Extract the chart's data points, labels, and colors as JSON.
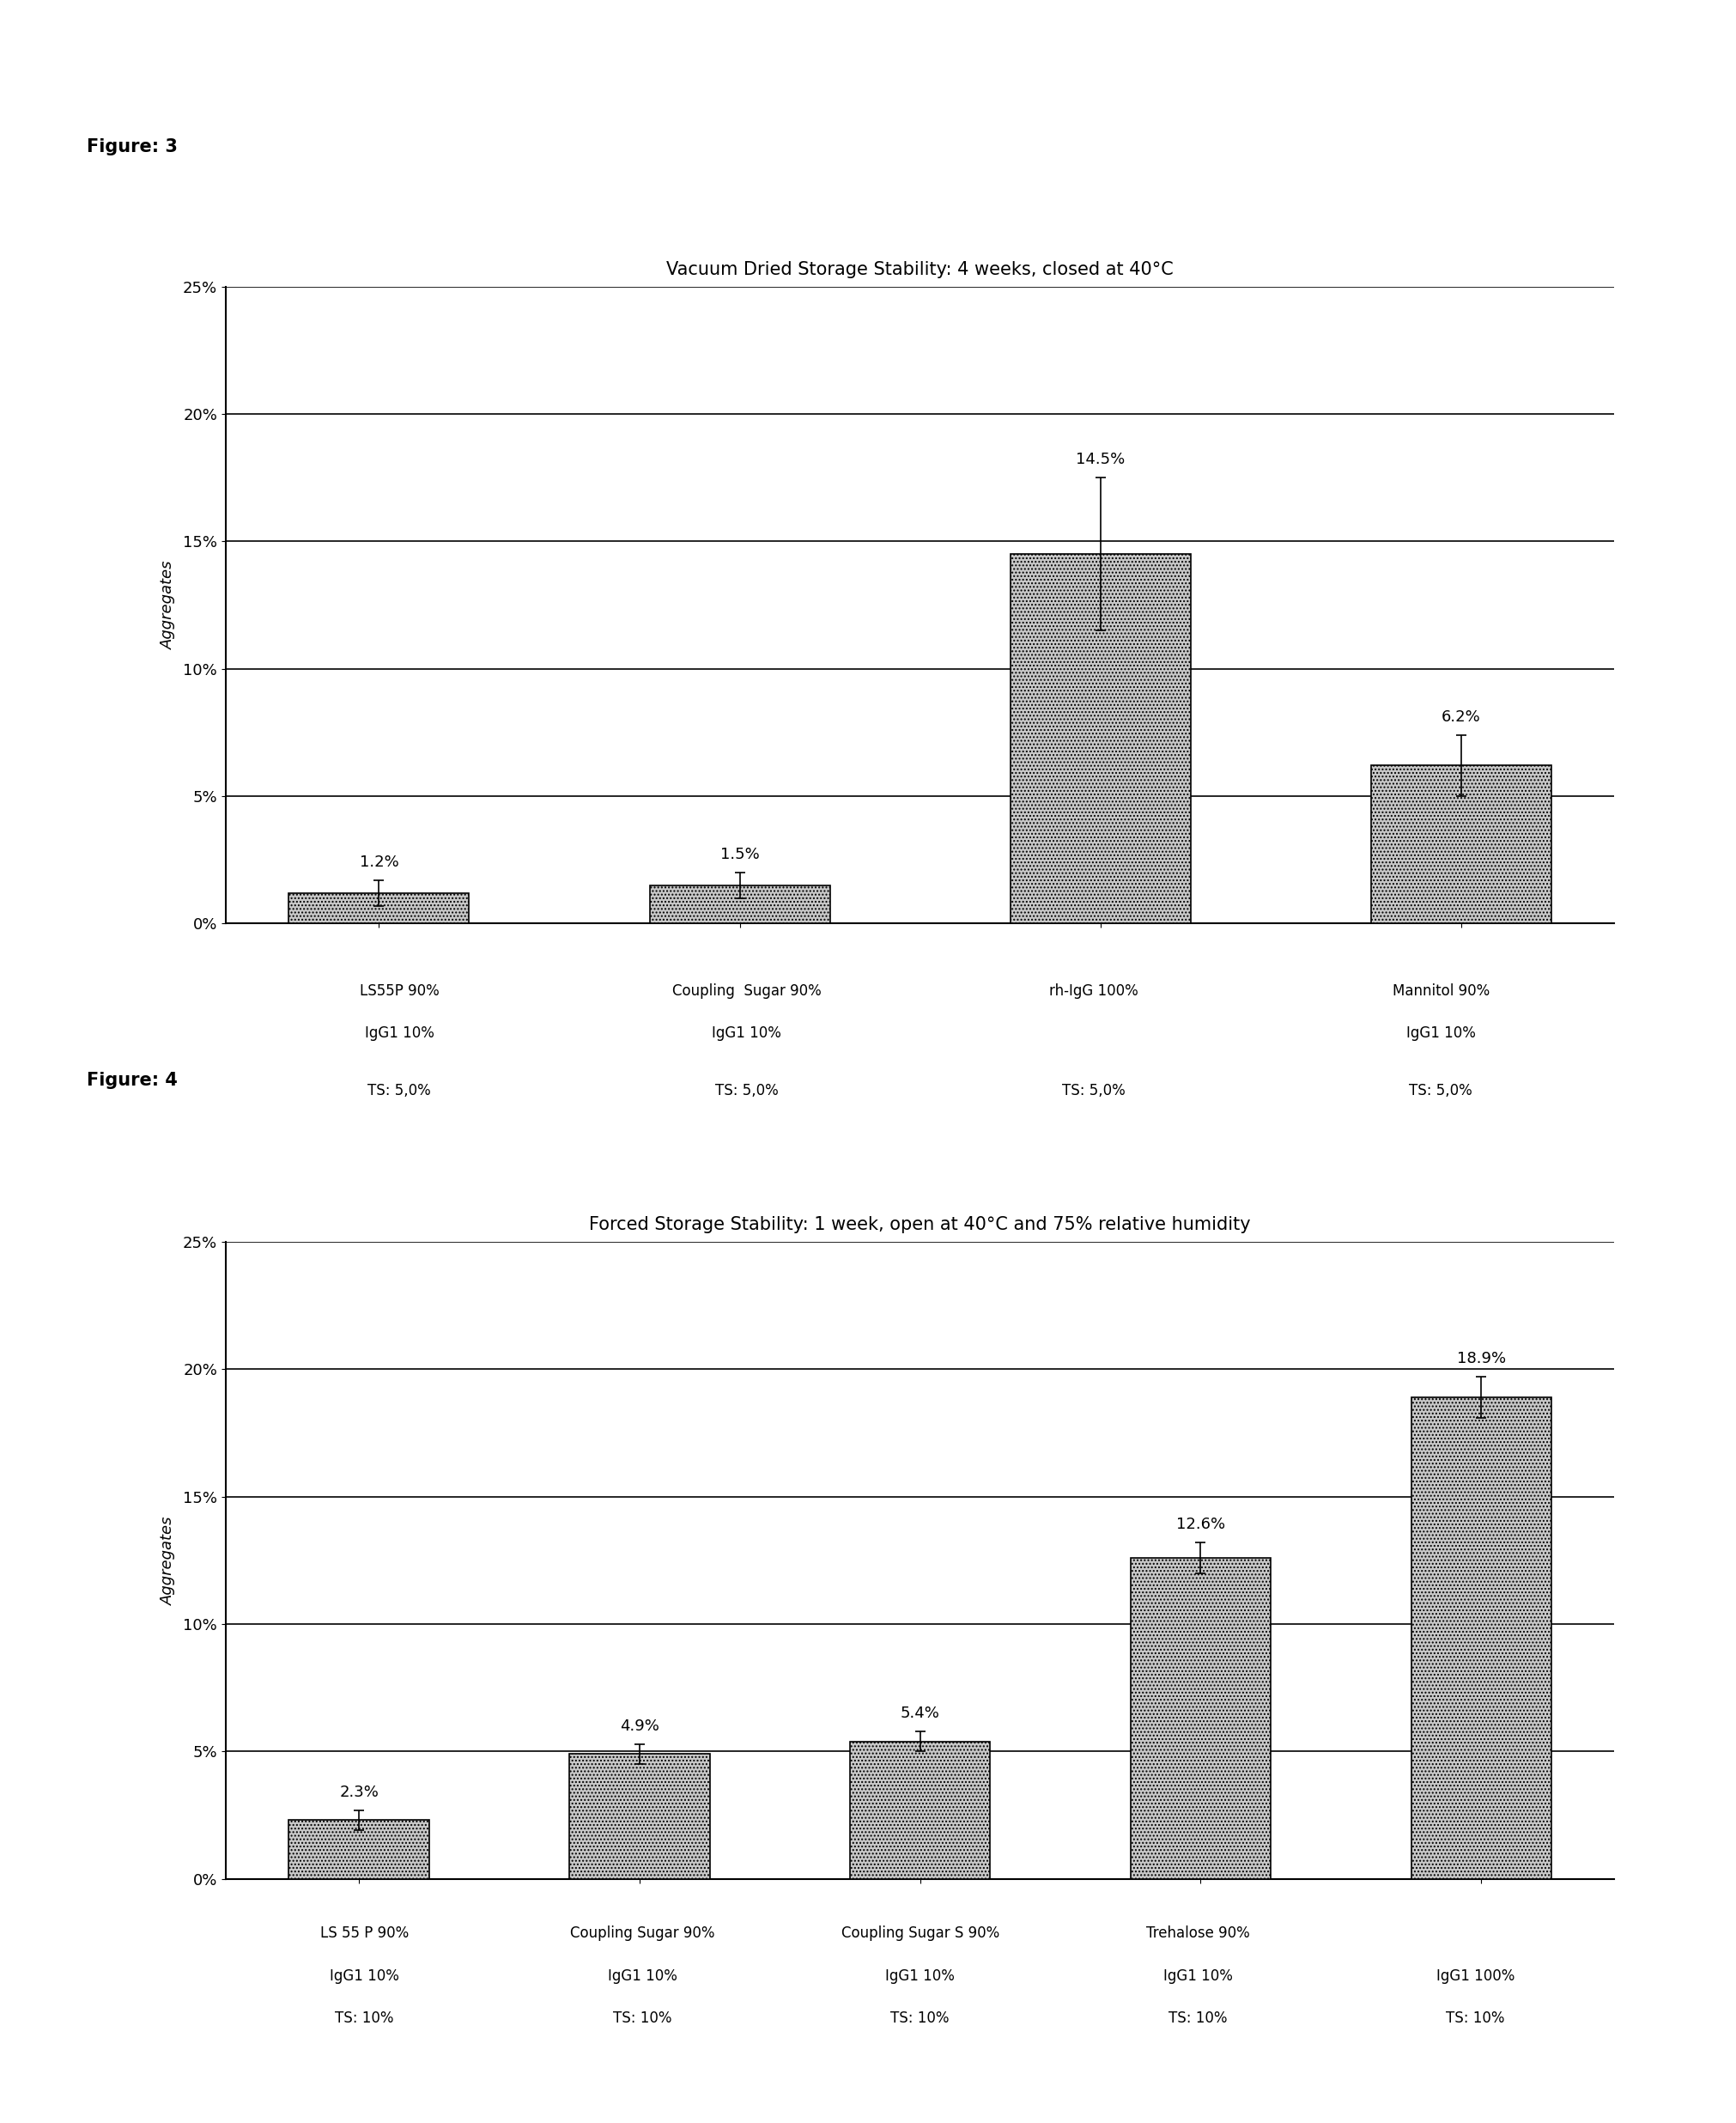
{
  "fig3": {
    "title": "Vacuum Dried Storage Stability: 4 weeks, closed at 40°C",
    "figure_label": "Figure: 3",
    "ylabel": "Aggregates",
    "ylim": [
      0,
      0.25
    ],
    "yticks": [
      0,
      0.05,
      0.1,
      0.15,
      0.2,
      0.25
    ],
    "ytick_labels": [
      "0%",
      "5%",
      "10%",
      "15%",
      "20%",
      "25%"
    ],
    "cat_line1": [
      "LS55P 90%",
      "Coupling  Sugar 90%",
      "rh-IgG 100%",
      "Mannitol 90%"
    ],
    "cat_line2": [
      "IgG1 10%",
      "IgG1 10%",
      "",
      "IgG1 10%"
    ],
    "cat_line3": [
      "TS: 5,0%",
      "TS: 5,0%",
      "TS: 5,0%",
      "TS: 5,0%"
    ],
    "values": [
      0.012,
      0.015,
      0.145,
      0.062
    ],
    "errors": [
      0.005,
      0.005,
      0.03,
      0.012
    ],
    "value_labels": [
      "1.2%",
      "1.5%",
      "14.5%",
      "6.2%"
    ],
    "bar_color": "#c8c8c8",
    "bar_hatch": "...."
  },
  "fig4": {
    "title": "Forced Storage Stability: 1 week, open at 40°C and 75% relative humidity",
    "figure_label": "Figure: 4",
    "ylabel": "Aggregates",
    "ylim": [
      0,
      0.25
    ],
    "yticks": [
      0,
      0.05,
      0.1,
      0.15,
      0.2,
      0.25
    ],
    "ytick_labels": [
      "0%",
      "5%",
      "10%",
      "15%",
      "20%",
      "25%"
    ],
    "cat_line1": [
      "LS 55 P 90%",
      "Coupling Sugar 90%",
      "Coupling Sugar S 90%",
      "Trehalose 90%",
      ""
    ],
    "cat_line2": [
      "IgG1 10%",
      "IgG1 10%",
      "IgG1 10%",
      "IgG1 10%",
      "IgG1 100%"
    ],
    "cat_line3": [
      "TS: 10%",
      "TS: 10%",
      "TS: 10%",
      "TS: 10%",
      "TS: 10%"
    ],
    "values": [
      0.023,
      0.049,
      0.054,
      0.126,
      0.189
    ],
    "errors": [
      0.004,
      0.004,
      0.004,
      0.006,
      0.008
    ],
    "value_labels": [
      "2.3%",
      "4.9%",
      "5.4%",
      "12.6%",
      "18.9%"
    ],
    "bar_color": "#c8c8c8",
    "bar_hatch": "...."
  },
  "background_color": "#ffffff",
  "title_fontsize": 15,
  "ylabel_fontsize": 13,
  "tick_fontsize": 13,
  "xtick_fontsize": 12,
  "annotation_fontsize": 13,
  "figure_label_fontsize": 15
}
